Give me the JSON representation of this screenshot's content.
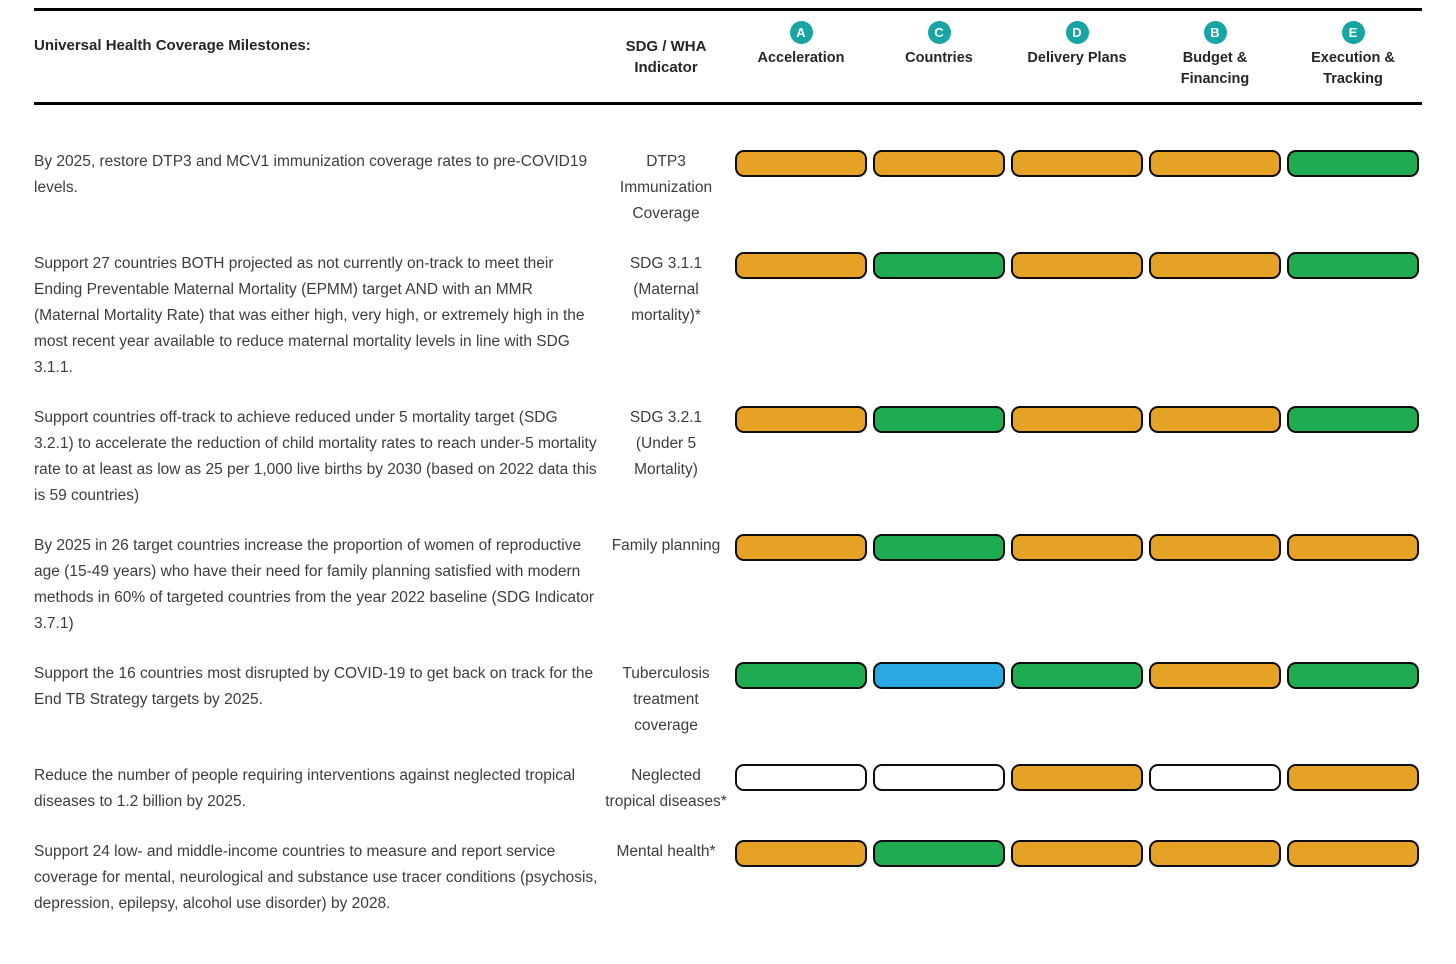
{
  "header": {
    "milestones_label": "Universal Health Coverage Milestones:",
    "indicator_label": "SDG / WHA Indicator",
    "columns": [
      {
        "badge": "A",
        "label": "Acceleration"
      },
      {
        "badge": "C",
        "label": "Countries"
      },
      {
        "badge": "D",
        "label": "Delivery Plans"
      },
      {
        "badge": "B",
        "label": "Budget & Financing"
      },
      {
        "badge": "E",
        "label": "Execution & Tracking"
      }
    ]
  },
  "colors": {
    "badge_teal": "#16A4A4",
    "orange": "#E6A224",
    "green": "#1FAB4F",
    "blue": "#29A9E1",
    "empty": "#FFFFFF"
  },
  "rows": [
    {
      "milestone": "By 2025, restore DTP3 and MCV1 immunization coverage rates to pre-COVID19 levels.",
      "indicator": "DTP3 Immunization Coverage",
      "statuses": [
        "orange",
        "orange",
        "orange",
        "orange",
        "green"
      ]
    },
    {
      "milestone": "Support 27 countries BOTH projected as not currently on-track to meet their Ending Preventable Maternal Mortality (EPMM) target AND with an MMR (Maternal Mortality Rate) that was either high, very high, or extremely high in the most recent year available to reduce maternal mortality levels in line with SDG 3.1.1.",
      "indicator": "SDG 3.1.1 (Maternal mortality)*",
      "statuses": [
        "orange",
        "green",
        "orange",
        "orange",
        "green"
      ]
    },
    {
      "milestone": "Support countries off-track to achieve reduced under 5 mortality target (SDG 3.2.1) to accelerate the reduction of child mortality rates to reach under-5 mortality rate to at least as low as 25 per 1,000 live births by 2030 (based on 2022 data this is 59 countries)",
      "indicator": "SDG 3.2.1 (Under 5 Mortality)",
      "statuses": [
        "orange",
        "green",
        "orange",
        "orange",
        "green"
      ]
    },
    {
      "milestone": "By 2025 in 26 target countries increase the proportion of women of reproductive age (15-49 years) who have their need for family planning satisfied with modern methods in 60% of targeted countries from the year 2022 baseline (SDG Indicator 3.7.1)",
      "indicator": "Family planning",
      "statuses": [
        "orange",
        "green",
        "orange",
        "orange",
        "orange"
      ]
    },
    {
      "milestone": "Support the 16 countries most disrupted by COVID-19 to get back on track for the End TB Strategy targets by 2025.",
      "indicator": "Tuberculosis treatment coverage",
      "statuses": [
        "green",
        "blue",
        "green",
        "orange",
        "green"
      ]
    },
    {
      "milestone": "Reduce the number of people requiring interventions against neglected tropical diseases to 1.2 billion by 2025.",
      "indicator": "Neglected tropical diseases*",
      "statuses": [
        "empty",
        "empty",
        "orange",
        "empty",
        "orange"
      ]
    },
    {
      "milestone": "Support 24 low- and middle-income countries to measure and report service coverage for mental, neurological and substance use tracer conditions (psychosis, depression, epilepsy, alcohol use disorder) by 2028.",
      "indicator": "Mental health*",
      "statuses": [
        "orange",
        "green",
        "orange",
        "orange",
        "orange"
      ]
    }
  ]
}
